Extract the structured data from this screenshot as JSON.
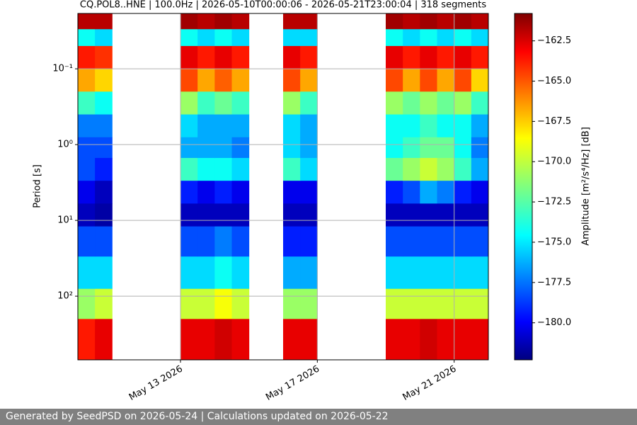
{
  "chart_data": {
    "type": "heatmap",
    "title": "CQ.POL8..HNE | 100.0Hz | 2026-05-10T00:00:06 - 2026-05-21T23:00:04 | 318 segments",
    "ylabel": "Period [s]",
    "log_y": true,
    "y_inverted": true,
    "grid": true,
    "xlim": [
      "2026-05-10T00:00",
      "2026-05-22T00:00"
    ],
    "xticks": [
      {
        "value": "2026-05-13T00:00",
        "label": "May 13 2026"
      },
      {
        "value": "2026-05-17T00:00",
        "label": "May 17 2026"
      },
      {
        "value": "2026-05-21T00:00",
        "label": "May 21 2026"
      }
    ],
    "ylim": [
      0.0186,
      692
    ],
    "yticks": [
      {
        "value": 0.1,
        "label": "10⁻¹"
      },
      {
        "value": 1,
        "label": "10⁰"
      },
      {
        "value": 10,
        "label": "10¹"
      },
      {
        "value": 100,
        "label": "10²"
      }
    ],
    "x_bins": [
      "2026-05-10T00:00",
      "2026-05-10T12:00",
      "2026-05-11T00:00",
      "2026-05-11T12:00",
      "2026-05-12T00:00",
      "2026-05-12T12:00",
      "2026-05-13T00:00",
      "2026-05-13T12:00",
      "2026-05-14T00:00",
      "2026-05-14T12:00",
      "2026-05-15T00:00",
      "2026-05-15T12:00",
      "2026-05-16T00:00",
      "2026-05-16T12:00",
      "2026-05-17T00:00",
      "2026-05-17T12:00",
      "2026-05-18T00:00",
      "2026-05-18T12:00",
      "2026-05-19T00:00",
      "2026-05-19T12:00",
      "2026-05-20T00:00",
      "2026-05-20T12:00",
      "2026-05-21T00:00",
      "2026-05-21T12:00",
      "2026-05-22T00:00"
    ],
    "y_bins": [
      0.0186,
      0.03,
      0.05,
      0.1,
      0.2,
      0.4,
      0.8,
      1.5,
      3,
      6,
      12,
      30,
      80,
      200,
      692
    ],
    "values": [
      [
        -162,
        -174,
        -164,
        -167,
        -173,
        -177,
        -178,
        -178,
        -180,
        -181,
        -178,
        -175,
        -171,
        -164
      ],
      [
        -162,
        -175,
        -164.5,
        -168,
        -174,
        -177,
        -178,
        -179,
        -181,
        -181.5,
        -178,
        -175,
        -170,
        -163
      ],
      null,
      null,
      null,
      null,
      [
        -161.5,
        -174,
        -163,
        -165,
        -171,
        -175,
        -176,
        -173,
        -179,
        -181,
        -178,
        -175,
        -170,
        -163
      ],
      [
        -162,
        -175,
        -164,
        -167,
        -173,
        -176,
        -176,
        -174,
        -180,
        -181,
        -178,
        -175,
        -170,
        -163
      ],
      [
        -161.5,
        -174,
        -163,
        -165.5,
        -172,
        -176,
        -176,
        -174,
        -179,
        -181,
        -177,
        -174,
        -169,
        -162.5
      ],
      [
        -162,
        -175,
        -164,
        -167,
        -173,
        -176,
        -177,
        -175,
        -180,
        -181,
        -178,
        -175,
        -170,
        -163
      ],
      null,
      null,
      [
        -162,
        -175,
        -163,
        -165,
        -171,
        -175,
        -175,
        -173,
        -180,
        -181,
        -179,
        -176,
        -171,
        -163
      ],
      [
        -162,
        -175,
        -164,
        -167,
        -173,
        -176,
        -176,
        -175,
        -180,
        -181,
        -179,
        -176,
        -171,
        -163
      ],
      null,
      null,
      null,
      null,
      [
        -161.5,
        -174,
        -163,
        -165,
        -171,
        -174,
        -174,
        -172,
        -179,
        -181,
        -178,
        -175,
        -170,
        -163
      ],
      [
        -162,
        -175,
        -164,
        -167,
        -172,
        -174,
        -173,
        -171,
        -178,
        -181,
        -178,
        -175,
        -170,
        -163
      ],
      [
        -161.5,
        -174,
        -163,
        -165,
        -171,
        -173,
        -172,
        -170,
        -176,
        -181,
        -178,
        -175,
        -170,
        -162.5
      ],
      [
        -162,
        -175,
        -164,
        -167,
        -172,
        -174,
        -172,
        -171,
        -177,
        -181,
        -178,
        -175,
        -170,
        -163
      ],
      [
        -161.5,
        -174,
        -163,
        -165,
        -171,
        -174,
        -174,
        -173,
        -179,
        -181,
        -178,
        -175,
        -170,
        -163
      ],
      [
        -162,
        -175,
        -164,
        -168,
        -173,
        -176,
        -177,
        -176,
        -180,
        -181,
        -178,
        -175,
        -170,
        -163
      ]
    ],
    "colorbar": {
      "label": "Amplitude [m²/s⁴/Hz] [dB]",
      "colormap": "jet",
      "lim": [
        -182.3,
        -160.8
      ],
      "ticks": [
        {
          "value": -162.5,
          "label": "−162.5"
        },
        {
          "value": -165,
          "label": "−165.0"
        },
        {
          "value": -167.5,
          "label": "−167.5"
        },
        {
          "value": -170,
          "label": "−170.0"
        },
        {
          "value": -172.5,
          "label": "−172.5"
        },
        {
          "value": -175,
          "label": "−175.0"
        },
        {
          "value": -177.5,
          "label": "−177.5"
        },
        {
          "value": -180,
          "label": "−180.0"
        }
      ]
    }
  },
  "footer": "Generated by SeedPSD on 2026-05-24 | Calculations updated on 2026-05-22"
}
